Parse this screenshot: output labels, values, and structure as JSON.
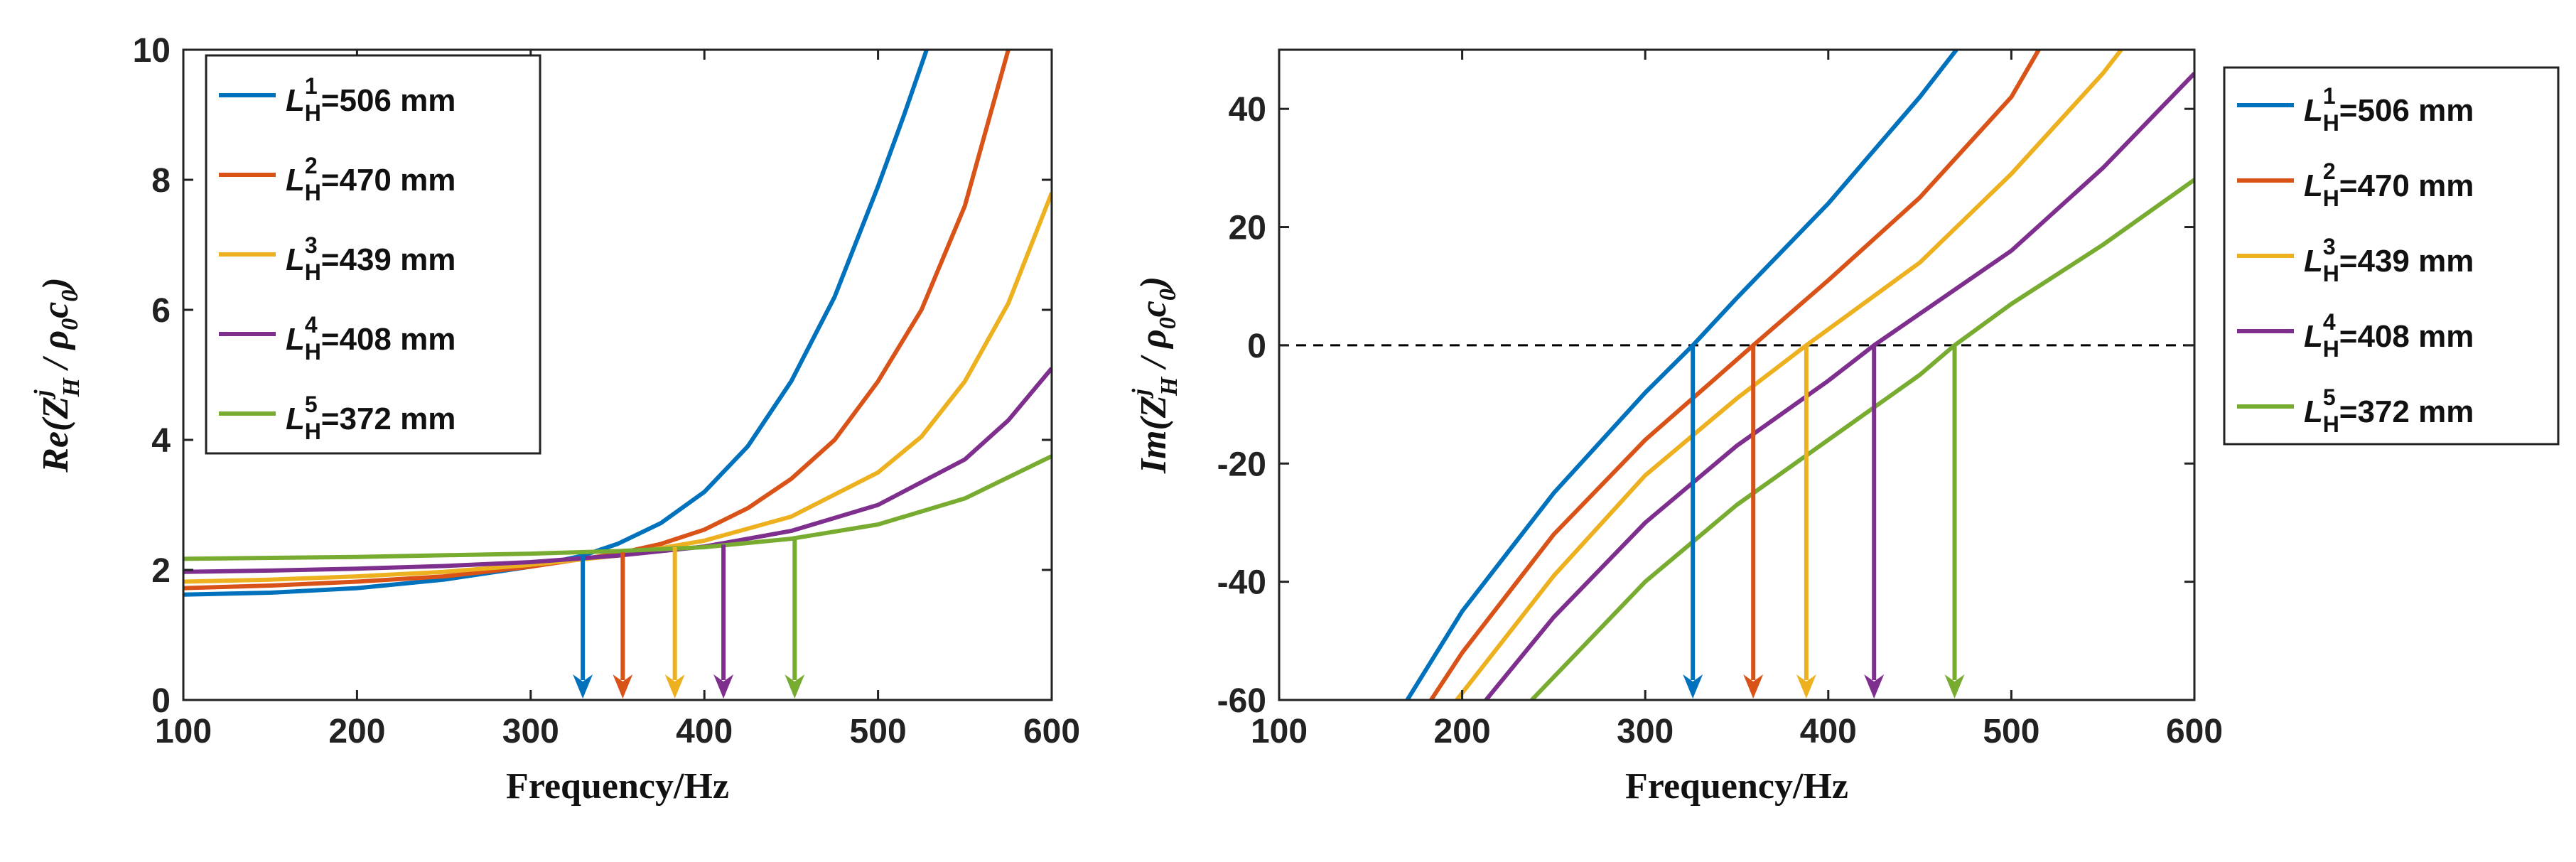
{
  "chart_data": [
    {
      "type": "line",
      "id": "left",
      "ylabel_parts": [
        "Re(Z",
        "j",
        "H",
        " / ρ",
        "0",
        "c",
        "0",
        ")"
      ],
      "xlabel": "Frequency/Hz",
      "xlim": [
        100,
        600
      ],
      "ylim": [
        0,
        10
      ],
      "xticks": [
        100,
        200,
        300,
        400,
        500,
        600
      ],
      "yticks": [
        0,
        2,
        4,
        6,
        8,
        10
      ],
      "ytick_labels": [
        "0",
        "2",
        "4",
        "6",
        "8",
        "10"
      ],
      "xtick_labels": [
        "100",
        "200",
        "300",
        "400",
        "500",
        "600"
      ],
      "legend": {
        "placement": "top-left"
      },
      "series": [
        {
          "name": "L_H^1=506 mm",
          "sup": "1",
          "value": "=506 mm",
          "color": "#0072BD",
          "x": [
            100,
            150,
            200,
            250,
            300,
            330,
            350,
            375,
            400,
            425,
            450,
            475,
            500,
            515,
            528
          ],
          "y": [
            1.62,
            1.65,
            1.72,
            1.85,
            2.05,
            2.22,
            2.4,
            2.72,
            3.2,
            3.9,
            4.9,
            6.2,
            7.9,
            9.0,
            10.0
          ]
        },
        {
          "name": "L_H^2=470 mm",
          "sup": "2",
          "value": "=470 mm",
          "color": "#D95319",
          "x": [
            100,
            150,
            200,
            250,
            300,
            350,
            375,
            400,
            425,
            450,
            475,
            500,
            525,
            550,
            575
          ],
          "y": [
            1.72,
            1.76,
            1.82,
            1.9,
            2.05,
            2.25,
            2.4,
            2.62,
            2.95,
            3.4,
            4.0,
            4.9,
            6.0,
            7.6,
            10.0
          ]
        },
        {
          "name": "L_H^3=439 mm",
          "sup": "3",
          "value": "=439 mm",
          "color": "#EDB120",
          "x": [
            100,
            150,
            200,
            250,
            300,
            350,
            400,
            450,
            500,
            525,
            550,
            575,
            600
          ],
          "y": [
            1.82,
            1.85,
            1.9,
            1.97,
            2.08,
            2.22,
            2.45,
            2.82,
            3.5,
            4.05,
            4.9,
            6.1,
            7.8
          ]
        },
        {
          "name": "L_H^4=408 mm",
          "sup": "4",
          "value": "=408 mm",
          "color": "#7E2F8E",
          "x": [
            100,
            150,
            200,
            250,
            300,
            350,
            400,
            450,
            500,
            550,
            575,
            600
          ],
          "y": [
            1.97,
            1.99,
            2.02,
            2.06,
            2.12,
            2.22,
            2.36,
            2.6,
            3.0,
            3.7,
            4.3,
            5.1
          ]
        },
        {
          "name": "L_H^5=372 mm",
          "sup": "5",
          "value": "=372 mm",
          "color": "#77AC30",
          "x": [
            100,
            200,
            300,
            350,
            400,
            450,
            500,
            550,
            600
          ],
          "y": [
            2.17,
            2.2,
            2.25,
            2.29,
            2.35,
            2.48,
            2.7,
            3.1,
            3.75
          ]
        }
      ],
      "annotations": [
        {
          "type": "arrow",
          "x": 330,
          "y_from": 2.22,
          "y_to": 0,
          "color": "#0072BD"
        },
        {
          "type": "arrow",
          "x": 353,
          "y_from": 2.27,
          "y_to": 0,
          "color": "#D95319"
        },
        {
          "type": "arrow",
          "x": 383,
          "y_from": 2.35,
          "y_to": 0,
          "color": "#EDB120"
        },
        {
          "type": "arrow",
          "x": 411,
          "y_from": 2.39,
          "y_to": 0,
          "color": "#7E2F8E"
        },
        {
          "type": "arrow",
          "x": 452,
          "y_from": 2.5,
          "y_to": 0,
          "color": "#77AC30"
        }
      ]
    },
    {
      "type": "line",
      "id": "right",
      "ylabel_parts": [
        "Im(Z",
        "j",
        "H",
        " / ρ",
        "0",
        "c",
        "0",
        ")"
      ],
      "xlabel": "Frequency/Hz",
      "xlim": [
        100,
        600
      ],
      "ylim": [
        -60,
        50
      ],
      "xticks": [
        100,
        200,
        300,
        400,
        500,
        600
      ],
      "yticks": [
        -60,
        -40,
        -20,
        0,
        20,
        40
      ],
      "ytick_labels": [
        "-60",
        "-40",
        "-20",
        "0",
        "20",
        "40"
      ],
      "xtick_labels": [
        "100",
        "200",
        "300",
        "400",
        "500",
        "600"
      ],
      "legend": {
        "placement": "outside-right"
      },
      "zero_line": {
        "y": 0,
        "style": "dashed"
      },
      "series": [
        {
          "name": "L_H^1=506 mm",
          "sup": "1",
          "value": "=506 mm",
          "color": "#0072BD",
          "x": [
            170,
            200,
            250,
            300,
            326,
            350,
            400,
            450,
            470
          ],
          "y": [
            -60,
            -45,
            -25,
            -8,
            0,
            8,
            24,
            42,
            50
          ]
        },
        {
          "name": "L_H^2=470 mm",
          "sup": "2",
          "value": "=470 mm",
          "color": "#D95319",
          "x": [
            183,
            200,
            250,
            300,
            359,
            400,
            450,
            500,
            515
          ],
          "y": [
            -60,
            -52,
            -32,
            -16,
            0,
            11,
            25,
            42,
            50
          ]
        },
        {
          "name": "L_H^3=439 mm",
          "sup": "3",
          "value": "=439 mm",
          "color": "#EDB120",
          "x": [
            197,
            250,
            300,
            350,
            388,
            450,
            500,
            550,
            560
          ],
          "y": [
            -60,
            -39,
            -22,
            -9,
            0,
            14,
            29,
            46,
            50
          ]
        },
        {
          "name": "L_H^4=408 mm",
          "sup": "4",
          "value": "=408 mm",
          "color": "#7E2F8E",
          "x": [
            213,
            250,
            300,
            350,
            400,
            425,
            500,
            550,
            600
          ],
          "y": [
            -60,
            -46,
            -30,
            -17,
            -6,
            0,
            16,
            30,
            46
          ]
        },
        {
          "name": "L_H^5=372 mm",
          "sup": "5",
          "value": "=372 mm",
          "color": "#77AC30",
          "x": [
            238,
            300,
            350,
            400,
            450,
            469,
            500,
            550,
            600
          ],
          "y": [
            -60,
            -40,
            -27,
            -16,
            -5,
            0,
            7,
            17,
            28
          ]
        }
      ],
      "annotations": [
        {
          "type": "arrow",
          "x": 326,
          "y_from": 0,
          "y_to": -60,
          "color": "#0072BD"
        },
        {
          "type": "arrow",
          "x": 359,
          "y_from": 0,
          "y_to": -60,
          "color": "#D95319"
        },
        {
          "type": "arrow",
          "x": 388,
          "y_from": 0,
          "y_to": -60,
          "color": "#EDB120"
        },
        {
          "type": "arrow",
          "x": 425,
          "y_from": 0,
          "y_to": -60,
          "color": "#7E2F8E"
        },
        {
          "type": "arrow",
          "x": 469,
          "y_from": 0,
          "y_to": -60,
          "color": "#77AC30"
        }
      ]
    }
  ]
}
